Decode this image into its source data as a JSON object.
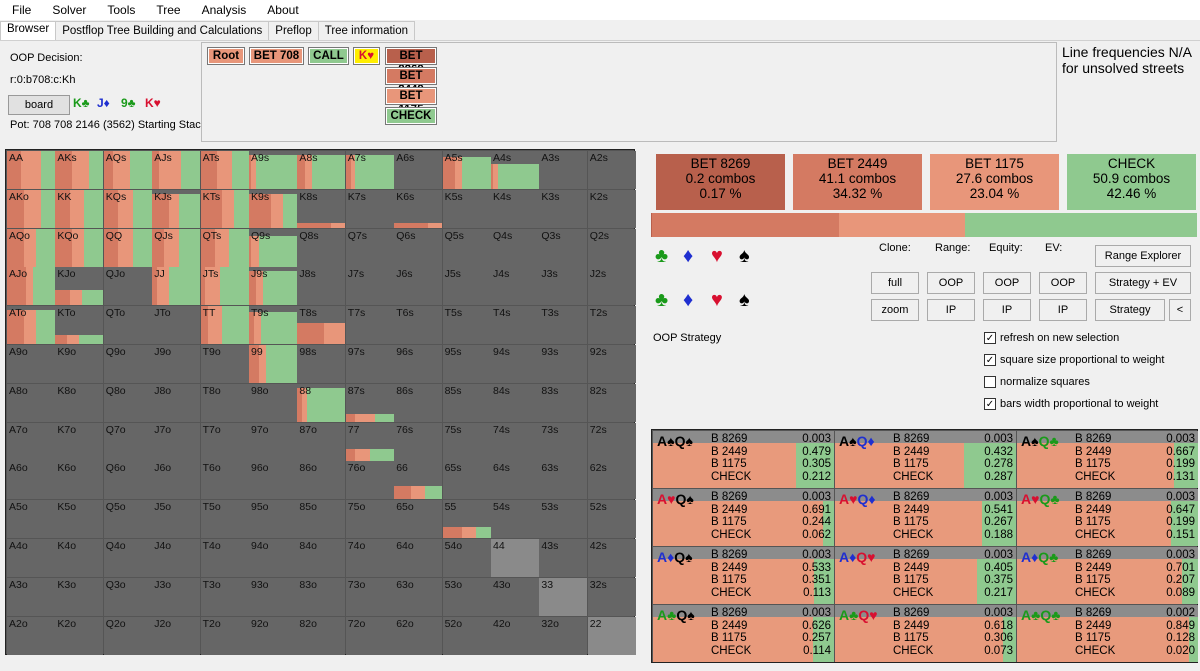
{
  "menu": [
    "File",
    "Solver",
    "Tools",
    "Tree",
    "Analysis",
    "About"
  ],
  "tabs": [
    "Browser",
    "Postflop Tree Building and Calculations",
    "Preflop",
    "Tree information"
  ],
  "info": {
    "decision": "OOP Decision:",
    "line": "r:0:b708:c:Kh",
    "board_button": "board",
    "board_cards": [
      {
        "label": "K♣",
        "color": "#1a9a1a"
      },
      {
        "label": "J♦",
        "color": "#1f2fd0"
      },
      {
        "label": "9♣",
        "color": "#1a9a1a"
      },
      {
        "label": "K♥",
        "color": "#d81030"
      }
    ],
    "pot": "Pot: 708 708 2146 (3562) Starting Stack"
  },
  "tree": {
    "path": [
      {
        "label": "Root",
        "color": "#e8967a"
      },
      {
        "label": "BET 708",
        "color": "#e8967a"
      },
      {
        "label": "CALL",
        "color": "#8fc98f"
      },
      {
        "label": "K♥",
        "color": "#ffee00"
      }
    ],
    "options": [
      {
        "label": "BET 8269",
        "color": "#b8604c"
      },
      {
        "label": "BET 2449",
        "color": "#d47a62"
      },
      {
        "label": "BET 1175",
        "color": "#e8967a"
      },
      {
        "label": "CHECK",
        "color": "#8fc98f"
      }
    ]
  },
  "line_freq_note": [
    "Line frequencies N/A",
    "for unsolved streets"
  ],
  "actions": [
    {
      "name": "BET 8269",
      "combos": "0.2 combos",
      "pct": "0.17 %",
      "color": "#b8604c",
      "freq": 0.0017
    },
    {
      "name": "BET 2449",
      "combos": "41.1 combos",
      "pct": "34.32 %",
      "color": "#d47a62",
      "freq": 0.3432
    },
    {
      "name": "BET 1175",
      "combos": "27.6 combos",
      "pct": "23.04 %",
      "color": "#e8967a",
      "freq": 0.2304
    },
    {
      "name": "CHECK",
      "combos": "50.9 combos",
      "pct": "42.46 %",
      "color": "#8fc98f",
      "freq": 0.4246
    }
  ],
  "suits": [
    "♣",
    "♦",
    "♥",
    "♠"
  ],
  "suit_colors": [
    "#1a9a1a",
    "#1f2fd0",
    "#d81030",
    "#000000"
  ],
  "controls": {
    "clone": "Clone:",
    "range": "Range:",
    "equity": "Equity:",
    "ev": "EV:",
    "full": "full",
    "zoom": "zoom",
    "oop": "OOP",
    "ip": "IP",
    "range_explorer": "Range Explorer",
    "strategy_ev": "Strategy + EV",
    "strategy": "Strategy",
    "back": "<",
    "strategy_label": "OOP Strategy"
  },
  "checkboxes": [
    {
      "label": "refresh on new selection",
      "checked": true
    },
    {
      "label": "square size proportional to weight",
      "checked": true
    },
    {
      "label": "normalize squares",
      "checked": false
    },
    {
      "label": "bars width proportional to weight",
      "checked": true
    }
  ],
  "grid_labels": [
    [
      "AA",
      "AKs",
      "AQs",
      "AJs",
      "ATs",
      "A9s",
      "A8s",
      "A7s",
      "A6s",
      "A5s",
      "A4s",
      "A3s",
      "A2s"
    ],
    [
      "AKo",
      "KK",
      "KQs",
      "KJs",
      "KTs",
      "K9s",
      "K8s",
      "K7s",
      "K6s",
      "K5s",
      "K4s",
      "K3s",
      "K2s"
    ],
    [
      "AQo",
      "KQo",
      "QQ",
      "QJs",
      "QTs",
      "Q9s",
      "Q8s",
      "Q7s",
      "Q6s",
      "Q5s",
      "Q4s",
      "Q3s",
      "Q2s"
    ],
    [
      "AJo",
      "KJo",
      "QJo",
      "JJ",
      "JTs",
      "J9s",
      "J8s",
      "J7s",
      "J6s",
      "J5s",
      "J4s",
      "J3s",
      "J2s"
    ],
    [
      "ATo",
      "KTo",
      "QTo",
      "JTo",
      "TT",
      "T9s",
      "T8s",
      "T7s",
      "T6s",
      "T5s",
      "T4s",
      "T3s",
      "T2s"
    ],
    [
      "A9o",
      "K9o",
      "Q9o",
      "J9o",
      "T9o",
      "99",
      "98s",
      "97s",
      "96s",
      "95s",
      "94s",
      "93s",
      "92s"
    ],
    [
      "A8o",
      "K8o",
      "Q8o",
      "J8o",
      "T8o",
      "98o",
      "88",
      "87s",
      "86s",
      "85s",
      "84s",
      "83s",
      "82s"
    ],
    [
      "A7o",
      "K7o",
      "Q7o",
      "J7o",
      "T7o",
      "97o",
      "87o",
      "77",
      "76s",
      "75s",
      "74s",
      "73s",
      "72s"
    ],
    [
      "A6o",
      "K6o",
      "Q6o",
      "J6o",
      "T6o",
      "96o",
      "86o",
      "76o",
      "66",
      "65s",
      "64s",
      "63s",
      "62s"
    ],
    [
      "A5o",
      "K5o",
      "Q5o",
      "J5o",
      "T5o",
      "95o",
      "85o",
      "75o",
      "65o",
      "55",
      "54s",
      "53s",
      "52s"
    ],
    [
      "A4o",
      "K4o",
      "Q4o",
      "J4o",
      "T4o",
      "94o",
      "84o",
      "74o",
      "64o",
      "54o",
      "44",
      "43s",
      "42s"
    ],
    [
      "A3o",
      "K3o",
      "Q3o",
      "J3o",
      "T3o",
      "93o",
      "83o",
      "73o",
      "63o",
      "53o",
      "43o",
      "33",
      "32s"
    ],
    [
      "A2o",
      "K2o",
      "Q2o",
      "J2o",
      "T2o",
      "92o",
      "82o",
      "72o",
      "62o",
      "52o",
      "42o",
      "32o",
      "22"
    ]
  ],
  "grid_strategy": {
    "0,0": [
      0.0,
      0.3,
      0.4,
      0.3,
      1.0
    ],
    "0,1": [
      0.0,
      0.35,
      0.35,
      0.3,
      1.0
    ],
    "0,2": [
      0.0,
      0.2,
      0.35,
      0.45,
      1.0
    ],
    "0,3": [
      0.0,
      0.15,
      0.45,
      0.4,
      1.0
    ],
    "0,4": [
      0.0,
      0.35,
      0.3,
      0.35,
      1.0
    ],
    "0,5": [
      0.0,
      0.05,
      0.1,
      0.85,
      0.9
    ],
    "0,6": [
      0.0,
      0.15,
      0.15,
      0.7,
      0.9
    ],
    "0,7": [
      0.0,
      0.1,
      0.1,
      0.8,
      0.9
    ],
    "0,9": [
      0.0,
      0.25,
      0.15,
      0.6,
      0.85
    ],
    "0,10": [
      0.0,
      0.05,
      0.1,
      0.85,
      0.65
    ],
    "1,0": [
      0.0,
      0.35,
      0.35,
      0.3,
      1.0
    ],
    "1,1": [
      0.0,
      0.3,
      0.3,
      0.4,
      1.0
    ],
    "1,2": [
      0.0,
      0.3,
      0.3,
      0.4,
      1.0
    ],
    "1,3": [
      0.0,
      0.35,
      0.2,
      0.45,
      0.9
    ],
    "1,4": [
      0.0,
      0.45,
      0.25,
      0.3,
      1.0
    ],
    "1,5": [
      0.0,
      0.45,
      0.25,
      0.3,
      0.9
    ],
    "1,6": [
      0.0,
      0.7,
      0.3,
      0.0,
      0.12
    ],
    "1,8": [
      0.0,
      0.7,
      0.3,
      0.0,
      0.12
    ],
    "2,0": [
      0.0,
      0.35,
      0.25,
      0.4,
      1.0
    ],
    "2,1": [
      0.0,
      0.35,
      0.25,
      0.4,
      1.0
    ],
    "2,2": [
      0.0,
      0.3,
      0.3,
      0.4,
      1.0
    ],
    "2,3": [
      0.0,
      0.25,
      0.3,
      0.45,
      1.0
    ],
    "2,4": [
      0.0,
      0.3,
      0.3,
      0.4,
      1.0
    ],
    "2,5": [
      0.0,
      0.05,
      0.15,
      0.8,
      0.8
    ],
    "3,0": [
      0.0,
      0.4,
      0.15,
      0.45,
      1.0
    ],
    "3,1": [
      0.0,
      0.3,
      0.25,
      0.45,
      0.4
    ],
    "3,3": [
      0.0,
      0.1,
      0.25,
      0.65,
      1.0
    ],
    "3,4": [
      0.0,
      0.1,
      0.3,
      0.6,
      1.0
    ],
    "3,5": [
      0.0,
      0.15,
      0.15,
      0.7,
      0.9
    ],
    "4,0": [
      0.0,
      0.35,
      0.25,
      0.4,
      0.9
    ],
    "4,1": [
      0.0,
      0.25,
      0.25,
      0.5,
      0.25
    ],
    "4,4": [
      0.0,
      0.15,
      0.3,
      0.55,
      1.0
    ],
    "4,5": [
      0.0,
      0.1,
      0.15,
      0.75,
      0.85
    ],
    "4,6": [
      0.0,
      0.55,
      0.45,
      0.0,
      0.55
    ],
    "5,5": [
      0.0,
      0.2,
      0.15,
      0.65,
      1.0
    ],
    "6,6": [
      0.0,
      0.1,
      0.1,
      0.8,
      0.9
    ],
    "6,7": [
      0.0,
      0.2,
      0.4,
      0.4,
      0.2
    ],
    "7,7": [
      0.0,
      0.2,
      0.3,
      0.5,
      0.3
    ],
    "8,8": [
      0.0,
      0.35,
      0.3,
      0.35,
      0.35
    ],
    "9,9": [
      0.0,
      0.4,
      0.3,
      0.3,
      0.3
    ],
    "10,10": [
      0.0,
      0.0,
      0.0,
      0.0,
      0.0
    ],
    "11,11": [
      0.0,
      0.0,
      0.0,
      0.0,
      0.0
    ],
    "12,12": [
      0.0,
      0.0,
      0.0,
      0.0,
      0.0
    ]
  },
  "combos": [
    {
      "c1": "A♠",
      "c2": "Q♠",
      "vals": [
        "0.003",
        "0.479",
        "0.305",
        "0.212"
      ]
    },
    {
      "c1": "A♠",
      "c2": "Q♦",
      "vals": [
        "0.003",
        "0.432",
        "0.278",
        "0.287"
      ]
    },
    {
      "c1": "A♠",
      "c2": "Q♣",
      "vals": [
        "0.003",
        "0.667",
        "0.199",
        "0.131"
      ]
    },
    {
      "c1": "A♥",
      "c2": "Q♠",
      "vals": [
        "0.003",
        "0.691",
        "0.244",
        "0.062"
      ]
    },
    {
      "c1": "A♥",
      "c2": "Q♦",
      "vals": [
        "0.003",
        "0.541",
        "0.267",
        "0.188"
      ]
    },
    {
      "c1": "A♥",
      "c2": "Q♣",
      "vals": [
        "0.003",
        "0.647",
        "0.199",
        "0.151"
      ]
    },
    {
      "c1": "A♦",
      "c2": "Q♠",
      "vals": [
        "0.003",
        "0.533",
        "0.351",
        "0.113"
      ]
    },
    {
      "c1": "A♦",
      "c2": "Q♥",
      "vals": [
        "0.003",
        "0.405",
        "0.375",
        "0.217"
      ]
    },
    {
      "c1": "A♦",
      "c2": "Q♣",
      "vals": [
        "0.003",
        "0.701",
        "0.207",
        "0.089"
      ]
    },
    {
      "c1": "A♣",
      "c2": "Q♠",
      "vals": [
        "0.003",
        "0.626",
        "0.257",
        "0.114"
      ]
    },
    {
      "c1": "A♣",
      "c2": "Q♥",
      "vals": [
        "0.003",
        "0.618",
        "0.306",
        "0.073"
      ]
    },
    {
      "c1": "A♣",
      "c2": "Q♣",
      "vals": [
        "0.002",
        "0.849",
        "0.128",
        "0.020"
      ]
    }
  ],
  "combo_row_labels": [
    "B 8269",
    "B 2449",
    "B 1175",
    "CHECK"
  ]
}
